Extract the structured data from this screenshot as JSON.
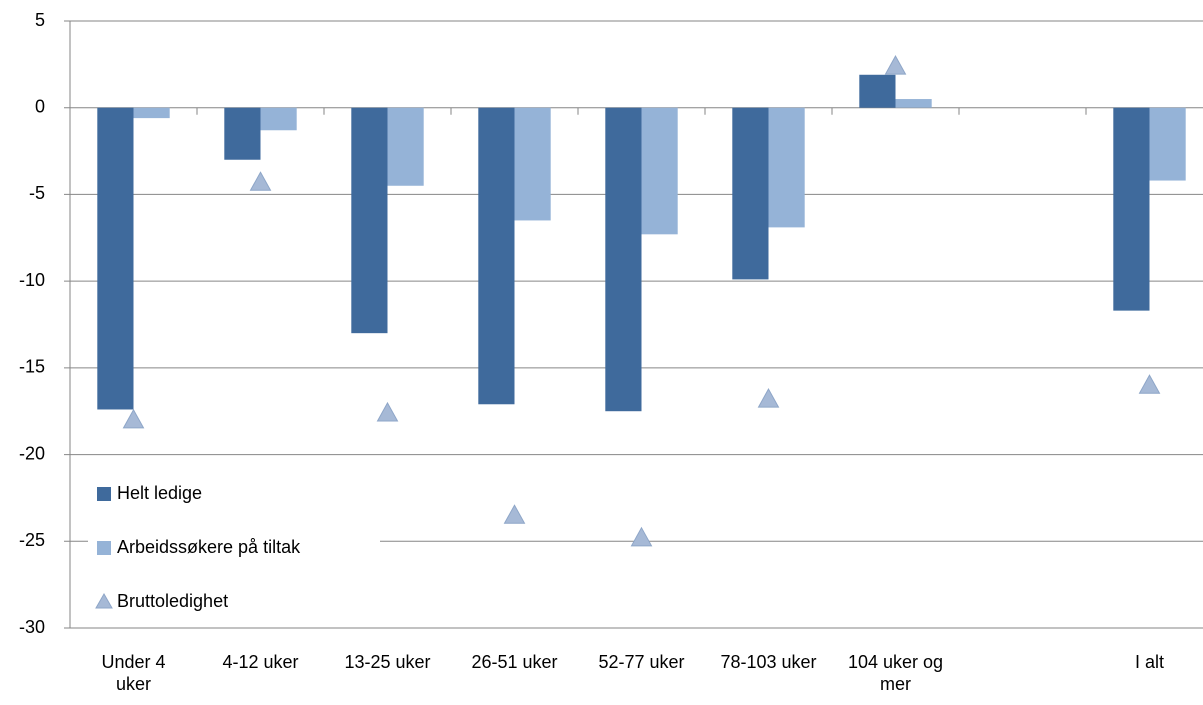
{
  "chart_data": {
    "type": "bar",
    "categories": [
      "Under 4 uker",
      "4-12 uker",
      "13-25 uker",
      "26-51 uker",
      "52-77 uker",
      "78-103 uker",
      "104 uker og mer",
      null,
      "I alt"
    ],
    "series": [
      {
        "name": "Helt ledige",
        "color": "#3f6a9c",
        "values": [
          -17.4,
          -3.0,
          -13.0,
          -17.1,
          -17.5,
          -9.9,
          1.9,
          null,
          -11.7
        ]
      },
      {
        "name": "Arbeidssøkere på tiltak",
        "color": "#95b3d7",
        "values": [
          -0.6,
          -1.3,
          -4.5,
          -6.5,
          -7.3,
          -6.9,
          0.5,
          null,
          -4.2
        ]
      },
      {
        "name": "Bruttoledighet",
        "color": "#a6b9d6",
        "marker": "triangle",
        "values": [
          -18.0,
          -4.3,
          -17.6,
          -23.5,
          -24.8,
          -16.8,
          2.4,
          null,
          -16.0
        ]
      }
    ],
    "ylim": [
      -30,
      5
    ],
    "yticks": [
      -30,
      -25,
      -20,
      -15,
      -10,
      -5,
      0,
      5
    ],
    "grid": true,
    "legend": "lower left"
  }
}
